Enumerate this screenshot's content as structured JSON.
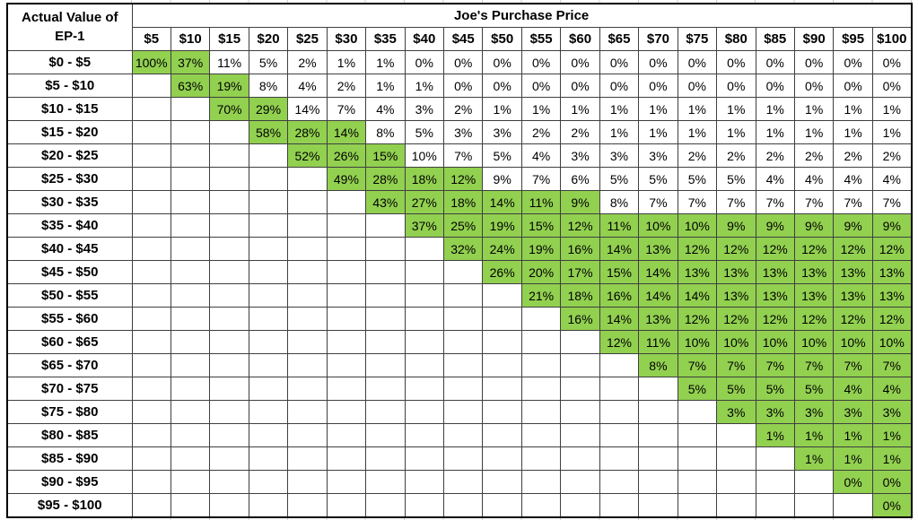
{
  "chart_data": {
    "type": "table",
    "row_axis_title": "Actual Value of EP-1",
    "row_axis_title_line1": "Actual Value of",
    "row_axis_title_line2": "EP-1",
    "col_axis_title": "Joe's Purchase Price",
    "columns": [
      "$5",
      "$10",
      "$15",
      "$20",
      "$25",
      "$30",
      "$35",
      "$40",
      "$45",
      "$50",
      "$55",
      "$60",
      "$65",
      "$70",
      "$75",
      "$80",
      "$85",
      "$90",
      "$95",
      "$100"
    ],
    "rows": [
      {
        "label": "$0 - $5",
        "values": [
          "100%",
          "37%",
          "11%",
          "5%",
          "2%",
          "1%",
          "1%",
          "0%",
          "0%",
          "0%",
          "0%",
          "0%",
          "0%",
          "0%",
          "0%",
          "0%",
          "0%",
          "0%",
          "0%",
          "0%"
        ],
        "green_range": [
          0,
          1
        ]
      },
      {
        "label": "$5 - $10",
        "values": [
          "",
          "63%",
          "19%",
          "8%",
          "4%",
          "2%",
          "1%",
          "1%",
          "0%",
          "0%",
          "0%",
          "0%",
          "0%",
          "0%",
          "0%",
          "0%",
          "0%",
          "0%",
          "0%",
          "0%"
        ],
        "green_range": [
          1,
          2
        ]
      },
      {
        "label": "$10 - $15",
        "values": [
          "",
          "",
          "70%",
          "29%",
          "14%",
          "7%",
          "4%",
          "3%",
          "2%",
          "1%",
          "1%",
          "1%",
          "1%",
          "1%",
          "1%",
          "1%",
          "1%",
          "1%",
          "1%",
          "1%"
        ],
        "green_range": [
          2,
          3
        ]
      },
      {
        "label": "$15 - $20",
        "values": [
          "",
          "",
          "",
          "58%",
          "28%",
          "14%",
          "8%",
          "5%",
          "3%",
          "3%",
          "2%",
          "2%",
          "1%",
          "1%",
          "1%",
          "1%",
          "1%",
          "1%",
          "1%",
          "1%"
        ],
        "green_range": [
          3,
          5
        ]
      },
      {
        "label": "$20 - $25",
        "values": [
          "",
          "",
          "",
          "",
          "52%",
          "26%",
          "15%",
          "10%",
          "7%",
          "5%",
          "4%",
          "3%",
          "3%",
          "3%",
          "2%",
          "2%",
          "2%",
          "2%",
          "2%",
          "2%"
        ],
        "green_range": [
          4,
          6
        ]
      },
      {
        "label": "$25 - $30",
        "values": [
          "",
          "",
          "",
          "",
          "",
          "49%",
          "28%",
          "18%",
          "12%",
          "9%",
          "7%",
          "6%",
          "5%",
          "5%",
          "5%",
          "5%",
          "4%",
          "4%",
          "4%",
          "4%"
        ],
        "green_range": [
          5,
          8
        ]
      },
      {
        "label": "$30 - $35",
        "values": [
          "",
          "",
          "",
          "",
          "",
          "",
          "43%",
          "27%",
          "18%",
          "14%",
          "11%",
          "9%",
          "8%",
          "7%",
          "7%",
          "7%",
          "7%",
          "7%",
          "7%",
          "7%"
        ],
        "green_range": [
          6,
          11
        ]
      },
      {
        "label": "$35 - $40",
        "values": [
          "",
          "",
          "",
          "",
          "",
          "",
          "",
          "37%",
          "25%",
          "19%",
          "15%",
          "12%",
          "11%",
          "10%",
          "10%",
          "9%",
          "9%",
          "9%",
          "9%",
          "9%"
        ],
        "green_range": [
          7,
          19
        ]
      },
      {
        "label": "$40 - $45",
        "values": [
          "",
          "",
          "",
          "",
          "",
          "",
          "",
          "",
          "32%",
          "24%",
          "19%",
          "16%",
          "14%",
          "13%",
          "12%",
          "12%",
          "12%",
          "12%",
          "12%",
          "12%"
        ],
        "green_range": [
          8,
          19
        ]
      },
      {
        "label": "$45 - $50",
        "values": [
          "",
          "",
          "",
          "",
          "",
          "",
          "",
          "",
          "",
          "26%",
          "20%",
          "17%",
          "15%",
          "14%",
          "13%",
          "13%",
          "13%",
          "13%",
          "13%",
          "13%"
        ],
        "green_range": [
          9,
          19
        ]
      },
      {
        "label": "$50 - $55",
        "values": [
          "",
          "",
          "",
          "",
          "",
          "",
          "",
          "",
          "",
          "",
          "21%",
          "18%",
          "16%",
          "14%",
          "14%",
          "13%",
          "13%",
          "13%",
          "13%",
          "13%"
        ],
        "green_range": [
          10,
          19
        ]
      },
      {
        "label": "$55 - $60",
        "values": [
          "",
          "",
          "",
          "",
          "",
          "",
          "",
          "",
          "",
          "",
          "",
          "16%",
          "14%",
          "13%",
          "12%",
          "12%",
          "12%",
          "12%",
          "12%",
          "12%"
        ],
        "green_range": [
          11,
          19
        ]
      },
      {
        "label": "$60 - $65",
        "values": [
          "",
          "",
          "",
          "",
          "",
          "",
          "",
          "",
          "",
          "",
          "",
          "",
          "12%",
          "11%",
          "10%",
          "10%",
          "10%",
          "10%",
          "10%",
          "10%"
        ],
        "green_range": [
          12,
          19
        ]
      },
      {
        "label": "$65 - $70",
        "values": [
          "",
          "",
          "",
          "",
          "",
          "",
          "",
          "",
          "",
          "",
          "",
          "",
          "",
          "8%",
          "7%",
          "7%",
          "7%",
          "7%",
          "7%",
          "7%"
        ],
        "green_range": [
          13,
          19
        ]
      },
      {
        "label": "$70 - $75",
        "values": [
          "",
          "",
          "",
          "",
          "",
          "",
          "",
          "",
          "",
          "",
          "",
          "",
          "",
          "",
          "5%",
          "5%",
          "5%",
          "5%",
          "4%",
          "4%"
        ],
        "green_range": [
          14,
          19
        ]
      },
      {
        "label": "$75 - $80",
        "values": [
          "",
          "",
          "",
          "",
          "",
          "",
          "",
          "",
          "",
          "",
          "",
          "",
          "",
          "",
          "",
          "3%",
          "3%",
          "3%",
          "3%",
          "3%"
        ],
        "green_range": [
          15,
          19
        ]
      },
      {
        "label": "$80 - $85",
        "values": [
          "",
          "",
          "",
          "",
          "",
          "",
          "",
          "",
          "",
          "",
          "",
          "",
          "",
          "",
          "",
          "",
          "1%",
          "1%",
          "1%",
          "1%"
        ],
        "green_range": [
          16,
          19
        ]
      },
      {
        "label": "$85 - $90",
        "values": [
          "",
          "",
          "",
          "",
          "",
          "",
          "",
          "",
          "",
          "",
          "",
          "",
          "",
          "",
          "",
          "",
          "",
          "1%",
          "1%",
          "1%"
        ],
        "green_range": [
          17,
          19
        ]
      },
      {
        "label": "$90 - $95",
        "values": [
          "",
          "",
          "",
          "",
          "",
          "",
          "",
          "",
          "",
          "",
          "",
          "",
          "",
          "",
          "",
          "",
          "",
          "",
          "0%",
          "0%"
        ],
        "green_range": [
          18,
          19
        ]
      },
      {
        "label": "$95 - $100",
        "values": [
          "",
          "",
          "",
          "",
          "",
          "",
          "",
          "",
          "",
          "",
          "",
          "",
          "",
          "",
          "",
          "",
          "",
          "",
          "",
          "0%"
        ],
        "green_range": [
          19,
          19
        ]
      }
    ],
    "highlight": {
      "style": "red-outline",
      "column": "$25",
      "col_index": 4,
      "from": "column-header",
      "through_row_label": "$20 - $25",
      "to_row_index": 4,
      "highlighted_cell_value": "52%"
    },
    "layout_hints": {
      "grid": "all-borders",
      "green_meaning": "highlighted probability cells",
      "header_bold": true
    }
  },
  "colors": {
    "green_fill": "#92d050",
    "red_outline": "#ff0000",
    "grid_line": "#3f3f3f",
    "outer_border": "#000000",
    "text": "#000000",
    "background": "#ffffff"
  }
}
